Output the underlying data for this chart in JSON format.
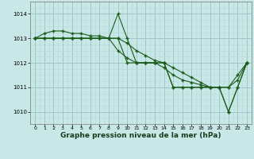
{
  "xlabel": "Graphe pression niveau de la mer (hPa)",
  "bg_color": "#c8e8e8",
  "grid_major_color": "#a0c8c8",
  "grid_minor_color": "#b8d8d8",
  "line_color": "#1a5c1a",
  "xlim": [
    -0.5,
    23.5
  ],
  "ylim": [
    1009.5,
    1014.5
  ],
  "yticks": [
    1010,
    1011,
    1012,
    1013,
    1014
  ],
  "xticks": [
    0,
    1,
    2,
    3,
    4,
    5,
    6,
    7,
    8,
    9,
    10,
    11,
    12,
    13,
    14,
    15,
    16,
    17,
    18,
    19,
    20,
    21,
    22,
    23
  ],
  "series": [
    [
      1013.0,
      1013.0,
      1013.0,
      1013.0,
      1013.0,
      1013.0,
      1013.0,
      1013.0,
      1013.0,
      1014.0,
      1013.0,
      1012.0,
      1012.0,
      1012.0,
      1012.0,
      1011.0,
      1011.0,
      1011.0,
      1011.0,
      1011.0,
      1011.0,
      1010.0,
      1011.0,
      1012.0
    ],
    [
      1013.0,
      1013.0,
      1013.0,
      1013.0,
      1013.0,
      1013.0,
      1013.0,
      1013.0,
      1013.0,
      1013.0,
      1012.0,
      1012.0,
      1012.0,
      1012.0,
      1012.0,
      1011.0,
      1011.0,
      1011.0,
      1011.0,
      1011.0,
      1011.0,
      1010.0,
      1011.0,
      1012.0
    ],
    [
      1013.0,
      1013.2,
      1013.3,
      1013.3,
      1013.2,
      1013.2,
      1013.1,
      1013.1,
      1013.0,
      1012.5,
      1012.2,
      1012.0,
      1012.0,
      1012.0,
      1011.8,
      1011.5,
      1011.3,
      1011.2,
      1011.1,
      1011.0,
      1011.0,
      1011.0,
      1011.5,
      1012.0
    ],
    [
      1013.0,
      1013.0,
      1013.0,
      1013.0,
      1013.0,
      1013.0,
      1013.0,
      1013.0,
      1013.0,
      1013.0,
      1012.8,
      1012.5,
      1012.3,
      1012.1,
      1012.0,
      1011.8,
      1011.6,
      1011.4,
      1011.2,
      1011.0,
      1011.0,
      1011.0,
      1011.3,
      1012.0
    ]
  ]
}
